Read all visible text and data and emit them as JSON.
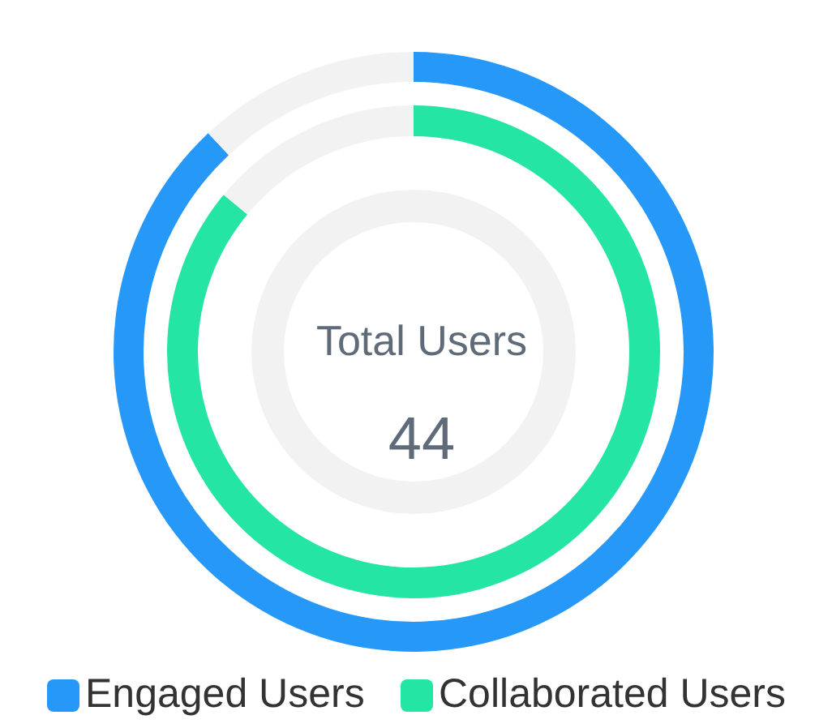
{
  "chart_data": [
    {
      "type": "donut",
      "legend": "bottom",
      "categories": [
        "Engaged Users",
        null
      ],
      "values": [
        88,
        12
      ],
      "colors": [
        "#2698f8",
        "#f2f2f2"
      ],
      "annotations": [
        "Total Users",
        "44"
      ]
    },
    {
      "type": "donut",
      "legend": "bottom",
      "categories": [
        "Collaborated Users",
        null
      ],
      "values": [
        86,
        14
      ],
      "colors": [
        "#24e5a4",
        "#f2f2f2"
      ]
    }
  ]
}
